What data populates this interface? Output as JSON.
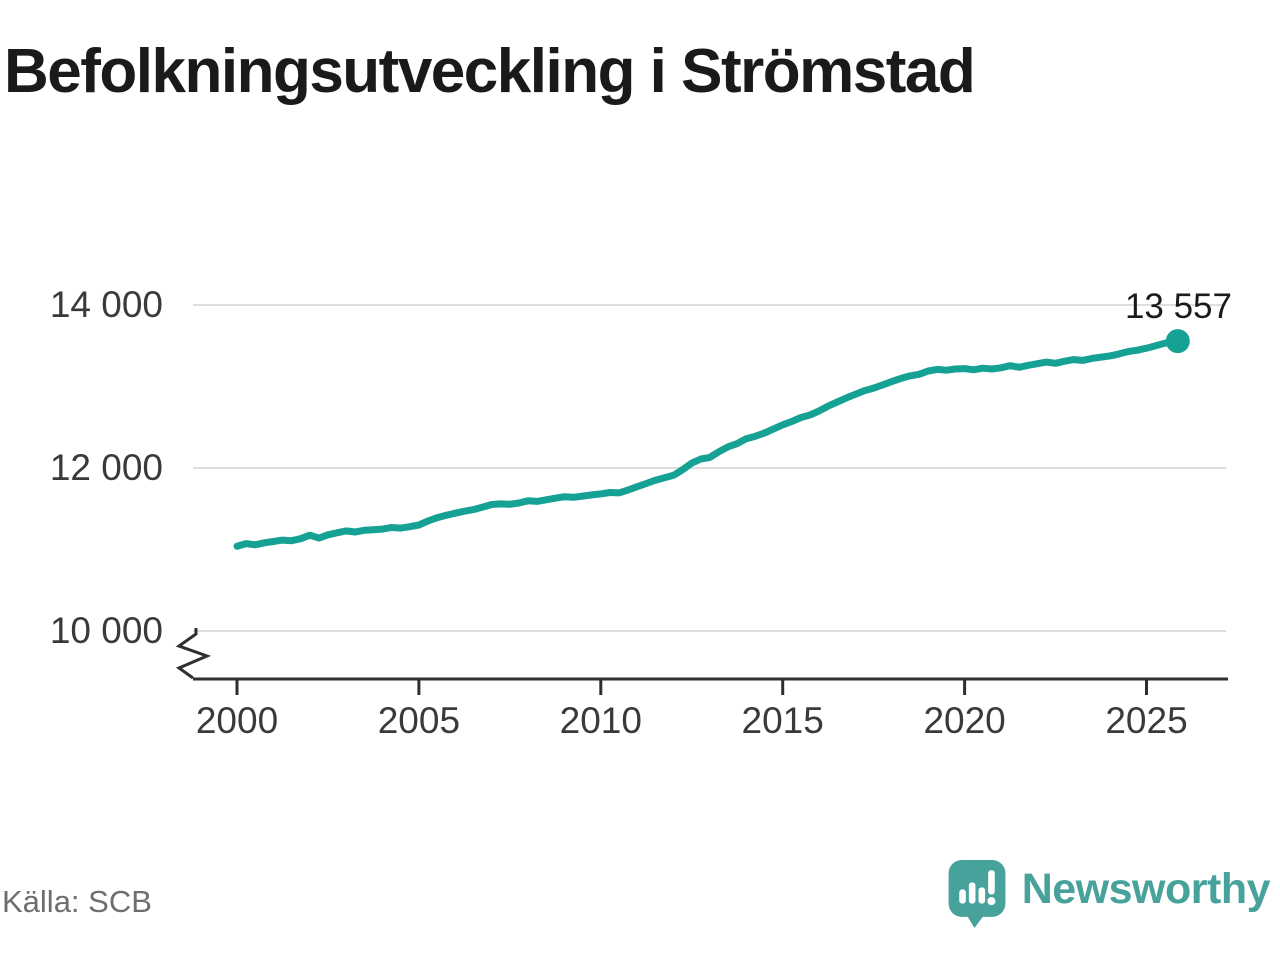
{
  "title": "Befolkningsutveckling i Strömstad",
  "source": "Källa: SCB",
  "brand": {
    "name": "Newsworthy"
  },
  "annotation": {
    "last_value_label": "13 557"
  },
  "colors": {
    "bg": "#ffffff",
    "line": "#16a195",
    "grid": "#dedede",
    "axis": "#2f2f2f",
    "title": "#1a1a1a",
    "tick": "#3a3a3a",
    "value": "#1a1a1a",
    "source": "#6e6e6e",
    "brand": "#47a29b"
  },
  "chart_data": {
    "type": "line",
    "title": "Befolkningsutveckling i Strömstad",
    "xlabel": "",
    "ylabel": "",
    "grid": "horizontal",
    "legend": "none",
    "axis_break": true,
    "xlim": [
      1998.8,
      2027.2
    ],
    "ylim_display": [
      9700,
      14600
    ],
    "x_ticks": [
      2000,
      2005,
      2010,
      2015,
      2020,
      2025
    ],
    "y_ticks": [
      {
        "value": 14000,
        "label": "14 000"
      },
      {
        "value": 12000,
        "label": "12 000"
      },
      {
        "value": 10000,
        "label": "10 000"
      }
    ],
    "last_value": 13557,
    "series": [
      {
        "color": "#16a195",
        "end_dot": true,
        "end_label": "13 557",
        "x": [
          2000.0,
          2000.25,
          2000.5,
          2000.75,
          2001.0,
          2001.25,
          2001.5,
          2001.75,
          2002.0,
          2002.25,
          2002.5,
          2002.75,
          2003.0,
          2003.25,
          2003.5,
          2003.75,
          2004.0,
          2004.25,
          2004.5,
          2004.75,
          2005.0,
          2005.25,
          2005.5,
          2005.75,
          2006.0,
          2006.25,
          2006.5,
          2006.75,
          2007.0,
          2007.25,
          2007.5,
          2007.75,
          2008.0,
          2008.25,
          2008.5,
          2008.75,
          2009.0,
          2009.25,
          2009.5,
          2009.75,
          2010.0,
          2010.25,
          2010.5,
          2010.75,
          2011.0,
          2011.25,
          2011.5,
          2011.75,
          2012.0,
          2012.25,
          2012.5,
          2012.75,
          2013.0,
          2013.25,
          2013.5,
          2013.75,
          2014.0,
          2014.25,
          2014.5,
          2014.75,
          2015.0,
          2015.25,
          2015.5,
          2015.75,
          2016.0,
          2016.25,
          2016.5,
          2016.75,
          2017.0,
          2017.25,
          2017.5,
          2017.75,
          2018.0,
          2018.25,
          2018.5,
          2018.75,
          2019.0,
          2019.25,
          2019.5,
          2019.75,
          2020.0,
          2020.25,
          2020.5,
          2020.75,
          2021.0,
          2021.25,
          2021.5,
          2021.75,
          2022.0,
          2022.25,
          2022.5,
          2022.75,
          2023.0,
          2023.25,
          2023.5,
          2023.75,
          2024.0,
          2024.25,
          2024.5,
          2024.75,
          2025.0,
          2025.25,
          2025.5,
          2025.75
        ],
        "y": [
          11040,
          11072,
          11058,
          11082,
          11098,
          11115,
          11108,
          11132,
          11175,
          11140,
          11180,
          11205,
          11228,
          11215,
          11235,
          11242,
          11250,
          11270,
          11262,
          11280,
          11300,
          11350,
          11390,
          11420,
          11445,
          11470,
          11490,
          11520,
          11552,
          11560,
          11555,
          11570,
          11598,
          11590,
          11610,
          11630,
          11648,
          11640,
          11655,
          11670,
          11682,
          11700,
          11695,
          11730,
          11770,
          11810,
          11850,
          11880,
          11910,
          11980,
          12060,
          12110,
          12130,
          12200,
          12260,
          12300,
          12360,
          12390,
          12430,
          12480,
          12530,
          12570,
          12620,
          12650,
          12700,
          12760,
          12810,
          12860,
          12905,
          12950,
          12980,
          13020,
          13060,
          13100,
          13130,
          13150,
          13190,
          13210,
          13200,
          13215,
          13220,
          13205,
          13225,
          13215,
          13230,
          13255,
          13235,
          13260,
          13280,
          13300,
          13285,
          13310,
          13330,
          13320,
          13345,
          13360,
          13375,
          13400,
          13430,
          13445,
          13470,
          13500,
          13530,
          13557
        ]
      }
    ]
  }
}
